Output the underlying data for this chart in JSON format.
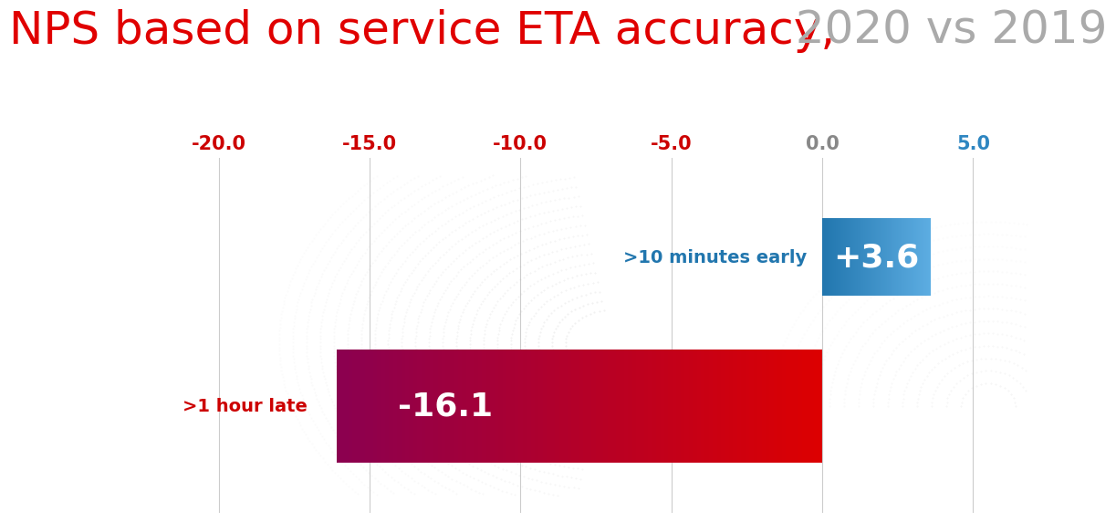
{
  "title_red": "NPS based on service ETA accuracy,",
  "title_gray": " 2020 vs 2019",
  "title_red_color": "#e00000",
  "title_gray_color": "#aaaaaa",
  "title_fontsize": 36,
  "background_color": "#ffffff",
  "xlim": [
    -21.5,
    6.8
  ],
  "xticks": [
    -20.0,
    -15.0,
    -10.0,
    -5.0,
    0.0,
    5.0
  ],
  "xtick_colors": [
    "#cc0000",
    "#cc0000",
    "#cc0000",
    "#cc0000",
    "#888888",
    "#2e86c1"
  ],
  "bar_early_value": 3.6,
  "bar_early_color_left": "#2176ae",
  "bar_early_color_right": "#5dade2",
  "bar_early_label": ">10 minutes early",
  "bar_early_text": "+3.6",
  "bar_late_value": -16.1,
  "bar_late_color_left": "#8b0050",
  "bar_late_color_right": "#dd0000",
  "bar_late_label": ">1 hour late",
  "bar_late_text": "-16.1",
  "label_color_early": "#2176ae",
  "label_color_late": "#cc0000",
  "text_color_white": "#ffffff",
  "grid_color": "#cccccc",
  "grid_linewidth": 0.8
}
